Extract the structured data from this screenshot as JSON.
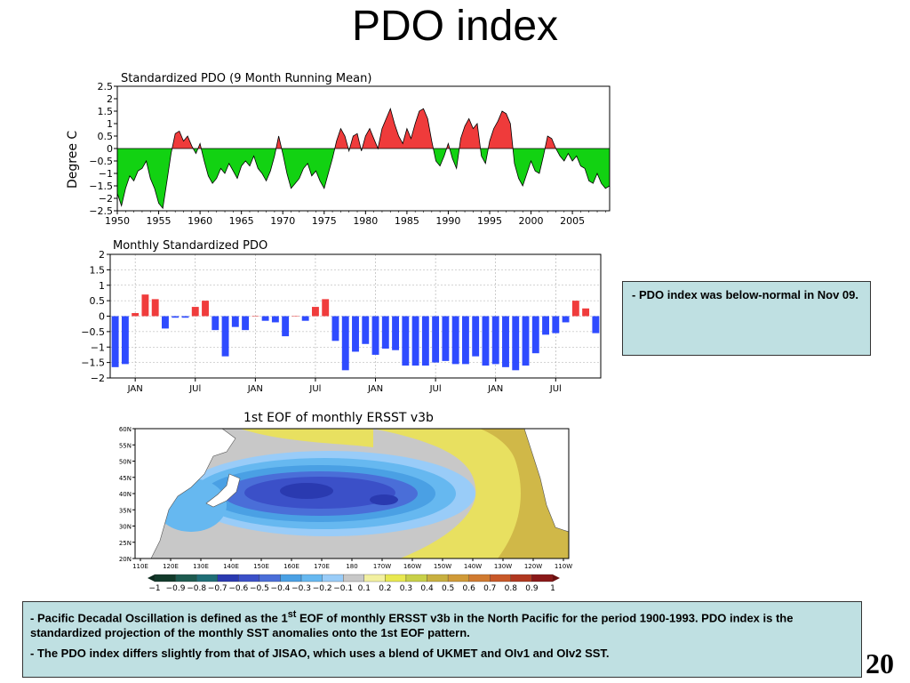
{
  "slide": {
    "title": "PDO index",
    "page_number": "20",
    "note": "-  PDO index was below-normal in Nov 09.",
    "description": [
      {
        "prefix": "- Pacific Decadal Oscillation is defined as the 1",
        "sup": "st",
        "rest": " EOF of monthly ERSST v3b in the North Pacific for the period 1900-1993. PDO index is the standardized projection of the monthly SST anomalies onto  the 1st EOF pattern."
      },
      {
        "prefix": "- The PDO index differs slightly from that of JISAO, which uses a blend of UKMET and OIv1 and OIv2 SST.",
        "sup": "",
        "rest": ""
      }
    ]
  },
  "colors": {
    "positive": "#ef3b3b",
    "negative": "#12d212",
    "bar_positive": "#f03c3c",
    "bar_negative": "#2f4bff"
  },
  "chart_data": [
    {
      "type": "area",
      "title": "Standardized PDO (9 Month Running Mean)",
      "ylabel": "Degree C",
      "ylim": [
        -2.5,
        2.5
      ],
      "xlim": [
        1950,
        2009.5
      ],
      "yticks": [
        "2.5",
        "2",
        "1.5",
        "1",
        "0.5",
        "0",
        "−0.5",
        "−1",
        "−1.5",
        "−2",
        "−2.5"
      ],
      "xticks": [
        "1950",
        "1955",
        "1960",
        "1965",
        "1970",
        "1975",
        "1980",
        "1985",
        "1990",
        "1995",
        "2000",
        "2005"
      ],
      "x": [
        1950,
        1950.5,
        1951,
        1951.5,
        1952,
        1952.5,
        1953,
        1953.5,
        1954,
        1954.5,
        1955,
        1955.5,
        1956,
        1956.5,
        1957,
        1957.5,
        1958,
        1958.5,
        1959,
        1959.5,
        1960,
        1960.5,
        1961,
        1961.5,
        1962,
        1962.5,
        1963,
        1963.5,
        1964,
        1964.5,
        1965,
        1965.5,
        1966,
        1966.5,
        1967,
        1967.5,
        1968,
        1968.5,
        1969,
        1969.5,
        1970,
        1970.5,
        1971,
        1971.5,
        1972,
        1972.5,
        1973,
        1973.5,
        1974,
        1974.5,
        1975,
        1975.5,
        1976,
        1976.5,
        1977,
        1977.5,
        1978,
        1978.5,
        1979,
        1979.5,
        1980,
        1980.5,
        1981,
        1981.5,
        1982,
        1982.5,
        1983,
        1983.5,
        1984,
        1984.5,
        1985,
        1985.5,
        1986,
        1986.5,
        1987,
        1987.5,
        1988,
        1988.5,
        1989,
        1989.5,
        1990,
        1990.5,
        1991,
        1991.5,
        1992,
        1992.5,
        1993,
        1993.5,
        1994,
        1994.5,
        1995,
        1995.5,
        1996,
        1996.5,
        1997,
        1997.5,
        1998,
        1998.5,
        1999,
        1999.5,
        2000,
        2000.5,
        2001,
        2001.5,
        2002,
        2002.5,
        2003,
        2003.5,
        2004,
        2004.5,
        2005,
        2005.5,
        2006,
        2006.5,
        2007,
        2007.5,
        2008,
        2008.5,
        2009,
        2009.5
      ],
      "values": [
        -1.8,
        -2.3,
        -1.6,
        -1.1,
        -1.3,
        -0.9,
        -0.8,
        -0.5,
        -1.2,
        -1.6,
        -2.2,
        -2.4,
        -1.3,
        -0.2,
        0.6,
        0.7,
        0.3,
        0.5,
        0.1,
        -0.2,
        0.2,
        -0.5,
        -1.1,
        -1.4,
        -1.2,
        -0.8,
        -1.0,
        -0.6,
        -0.9,
        -1.2,
        -0.7,
        -0.5,
        -0.7,
        -0.3,
        -0.8,
        -1.0,
        -1.3,
        -0.9,
        -0.3,
        0.5,
        -0.2,
        -1.0,
        -1.6,
        -1.4,
        -1.2,
        -0.8,
        -0.6,
        -1.1,
        -0.9,
        -1.3,
        -1.6,
        -1.0,
        -0.4,
        0.3,
        0.8,
        0.5,
        -0.1,
        0.5,
        0.6,
        -0.1,
        0.5,
        0.8,
        0.4,
        0.0,
        0.8,
        1.2,
        1.6,
        1.0,
        0.5,
        0.2,
        0.8,
        0.4,
        1.0,
        1.5,
        1.6,
        1.2,
        0.3,
        -0.5,
        -0.7,
        -0.3,
        0.2,
        -0.4,
        -0.8,
        0.4,
        0.9,
        1.2,
        0.8,
        1.0,
        -0.3,
        -0.6,
        0.3,
        0.8,
        1.1,
        1.5,
        1.4,
        1.0,
        -0.6,
        -1.2,
        -1.5,
        -1.0,
        -0.5,
        -0.9,
        -1.0,
        -0.3,
        0.5,
        0.4,
        0.0,
        -0.3,
        -0.5,
        -0.2,
        -0.5,
        -0.3,
        -0.7,
        -0.8,
        -1.3,
        -1.4,
        -1.0,
        -1.4,
        -1.6,
        -1.5
      ]
    },
    {
      "type": "bar",
      "title": "Monthly Standardized PDO",
      "ylim": [
        -2,
        2
      ],
      "yticks": [
        "2",
        "1.5",
        "1",
        "0.5",
        "0",
        "−0.5",
        "−1",
        "−1.5",
        "−2"
      ],
      "xticks": [
        {
          "label": "JAN",
          "index": 2
        },
        {
          "label": "JUl",
          "index": 8
        },
        {
          "label": "JAN",
          "index": 14
        },
        {
          "label": "JUl",
          "index": 20
        },
        {
          "label": "JAN",
          "index": 26
        },
        {
          "label": "JUl",
          "index": 32
        },
        {
          "label": "JAN",
          "index": 38
        },
        {
          "label": "JUl",
          "index": 44
        }
      ],
      "values": [
        -1.65,
        -1.55,
        0.1,
        0.7,
        0.55,
        -0.4,
        -0.05,
        -0.05,
        0.3,
        0.5,
        -0.45,
        -1.3,
        -0.35,
        -0.45,
        0.0,
        -0.15,
        -0.2,
        -0.65,
        0.0,
        -0.15,
        0.3,
        0.55,
        -0.8,
        -1.75,
        -1.15,
        -0.9,
        -1.25,
        -1.05,
        -1.1,
        -1.6,
        -1.6,
        -1.6,
        -1.5,
        -1.45,
        -1.55,
        -1.55,
        -1.3,
        -1.6,
        -1.55,
        -1.65,
        -1.75,
        -1.6,
        -1.2,
        -0.6,
        -0.55,
        -0.2,
        0.5,
        0.25,
        -0.55
      ]
    },
    {
      "type": "heatmap",
      "title": "1st EOF of monthly ERSST v3b",
      "yticks": [
        "60N",
        "55N",
        "50N",
        "45N",
        "40N",
        "35N",
        "30N",
        "25N",
        "20N"
      ],
      "xticks": [
        "110E",
        "120E",
        "130E",
        "140E",
        "150E",
        "160E",
        "170E",
        "180",
        "170W",
        "160W",
        "150W",
        "140W",
        "130W",
        "120W",
        "110W"
      ],
      "colorbar_labels": [
        "−1",
        "−0.9",
        "−0.8",
        "−0.7",
        "−0.6",
        "−0.5",
        "−0.4",
        "−0.3",
        "−0.2",
        "−0.1",
        "0.1",
        "0.2",
        "0.3",
        "0.4",
        "0.5",
        "0.6",
        "0.7",
        "0.8",
        "0.9",
        "1"
      ],
      "colorbar_colors": [
        "#123a2a",
        "#1d5a4f",
        "#1f6e76",
        "#2a3ab0",
        "#3b50c8",
        "#4a6ed8",
        "#4aa0e4",
        "#66b8f0",
        "#99ccf8",
        "#c8c8c8",
        "#f2f0a0",
        "#e8e850",
        "#c8d048",
        "#c8b040",
        "#d09a38",
        "#d07a30",
        "#c85828",
        "#b03820",
        "#8a1818"
      ]
    }
  ]
}
